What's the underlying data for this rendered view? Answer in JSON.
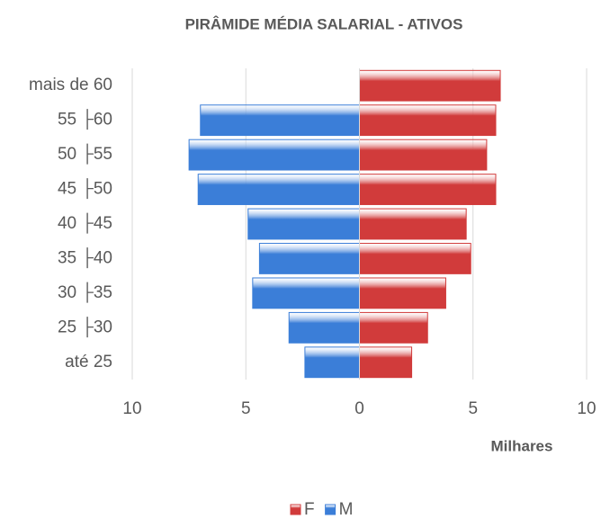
{
  "chart_data": {
    "type": "bar",
    "orientation": "horizontal",
    "title": "PIRÂMIDE MÉDIA SALARIAL - ATIVOS",
    "xlabel": "Milhares",
    "categories": [
      "mais de 60",
      "55 ├60",
      "50 ├55",
      "45 ├50",
      "40 ├45",
      "35 ├40",
      "30 ├35",
      "25 ├30",
      "até 25"
    ],
    "series": [
      {
        "name": "F",
        "color": "#d13b3b",
        "values": [
          6.2,
          6.0,
          5.6,
          6.0,
          4.7,
          4.9,
          3.8,
          3.0,
          2.3
        ]
      },
      {
        "name": "M",
        "color": "#3b7ed8",
        "values": [
          0,
          -7.0,
          -7.5,
          -7.1,
          -4.9,
          -4.4,
          -4.7,
          -3.1,
          -2.4
        ]
      }
    ],
    "xlim": [
      -10,
      10
    ],
    "xticks": [
      {
        "value": -10,
        "label": "10"
      },
      {
        "value": -5,
        "label": "5"
      },
      0,
      5,
      10
    ],
    "grid": true,
    "legend": "bottom"
  }
}
